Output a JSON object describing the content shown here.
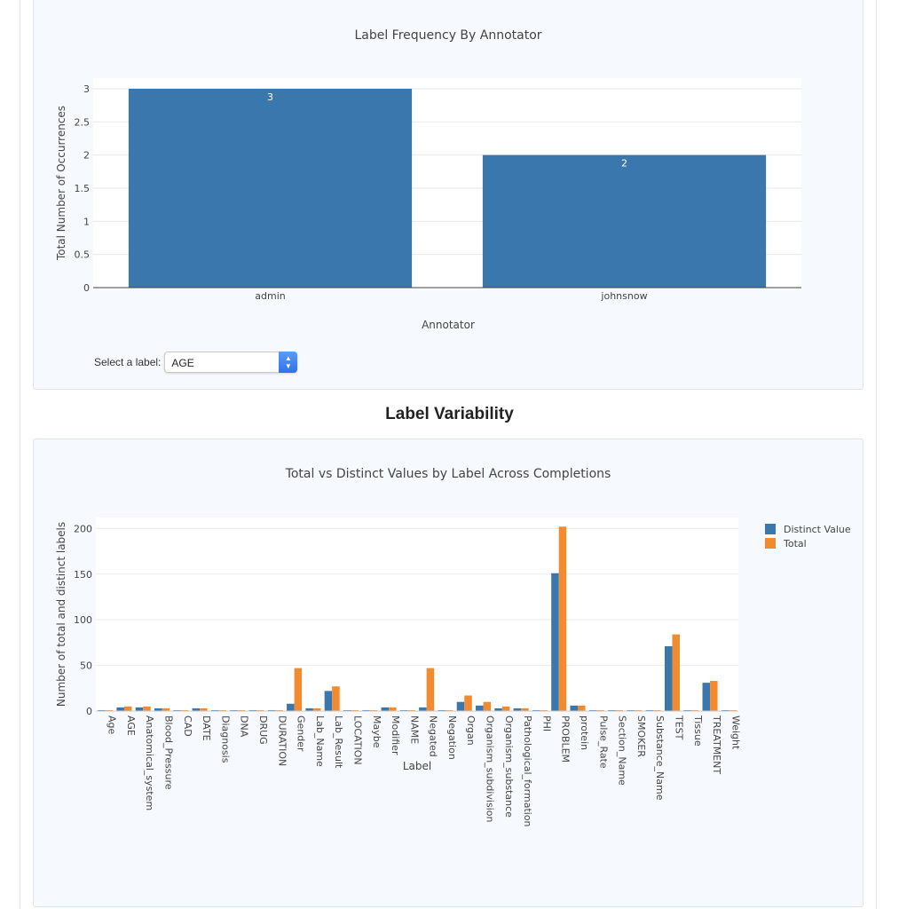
{
  "section_heading": "Label Variability",
  "select": {
    "label": "Select a label:",
    "value": "AGE"
  },
  "colors": {
    "blue": "#3a77ad",
    "orange": "#f28a30",
    "panel": "#f6f9fd"
  },
  "chart_data": [
    {
      "type": "bar",
      "title": "Label Frequency By Annotator",
      "xlabel": "Annotator",
      "ylabel": "Total Number of Occurrences",
      "categories": [
        "admin",
        "johnsnow"
      ],
      "values": [
        3,
        2
      ],
      "data_labels": [
        "3",
        "2"
      ],
      "ylim": [
        0,
        3.16
      ],
      "yticks": [
        0,
        0.5,
        1,
        1.5,
        2,
        2.5,
        3
      ],
      "ytick_labels": [
        "0",
        "0.5",
        "1",
        "1.5",
        "2",
        "2.5",
        "3"
      ],
      "grid": true
    },
    {
      "type": "bar",
      "title": "Total vs Distinct Values by Label Across Completions",
      "xlabel": "Label",
      "ylabel": "Number of total and distinct labels",
      "legend": "top-right",
      "ylim": [
        0,
        212
      ],
      "yticks": [
        0,
        50,
        100,
        150,
        200
      ],
      "ytick_labels": [
        "0",
        "50",
        "100",
        "150",
        "200"
      ],
      "grid": true,
      "categories": [
        "Age",
        "AGE",
        "Anatomical_system",
        "Blood_Pressure",
        "CAD",
        "DATE",
        "Diagnosis",
        "DNA",
        "DRUG",
        "DURATION",
        "Gender",
        "Lab_Name",
        "Lab_Result",
        "LOCATION",
        "Maybe",
        "Modifier",
        "NAME",
        "Negated",
        "Negation",
        "Organ",
        "Organism_subdivision",
        "Organism_substance",
        "Pathological_formation",
        "PHI",
        "PROBLEM",
        "protein",
        "Pulse_Rate",
        "Section_Name",
        "SMOKER",
        "Substance_Name",
        "TEST",
        "Tissue",
        "TREATMENT",
        "Weight"
      ],
      "series": [
        {
          "name": "Distinct Value",
          "values": [
            1,
            4,
            4,
            3,
            1,
            3,
            1,
            1,
            1,
            1,
            8,
            3,
            22,
            1,
            1,
            4,
            1,
            4,
            1,
            10,
            6,
            3,
            3,
            1,
            151,
            6,
            1,
            1,
            1,
            1,
            71,
            1,
            31,
            1
          ]
        },
        {
          "name": "Total",
          "values": [
            1,
            5,
            5,
            3,
            1,
            3,
            1,
            1,
            1,
            1,
            47,
            3,
            27,
            1,
            1,
            4,
            1,
            47,
            1,
            17,
            10,
            5,
            3,
            1,
            202,
            6,
            1,
            1,
            1,
            1,
            84,
            1,
            33,
            1
          ]
        }
      ]
    }
  ]
}
